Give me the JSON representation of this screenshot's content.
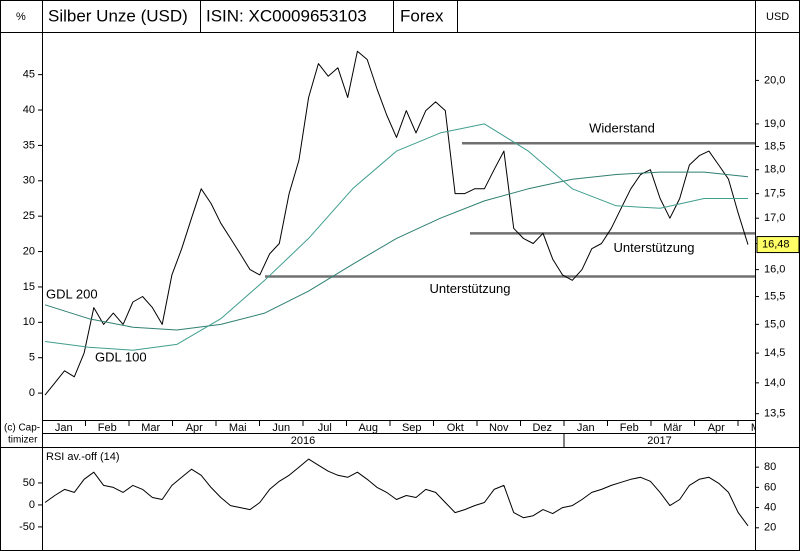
{
  "chart_data": [
    {
      "type": "line",
      "title_cells": [
        "ISIN: XC0009653103",
        "Forex"
      ],
      "ylabel": "%",
      "y2label": "USD",
      "ylim": [
        -3.8,
        50.6
      ],
      "yticks": [
        0,
        5,
        10,
        15,
        20,
        25,
        30,
        35,
        40,
        45
      ],
      "y2lim": [
        13.4,
        21.1
      ],
      "y2_log": true,
      "y2ticks": [
        {
          "value": 13.5,
          "label": "13,5"
        },
        {
          "value": 14.0,
          "label": "14,0"
        },
        {
          "value": 14.5,
          "label": "14,5"
        },
        {
          "value": 15.0,
          "label": "15,0"
        },
        {
          "value": 15.5,
          "label": "15,5"
        },
        {
          "value": 16.0,
          "label": "16,0"
        },
        {
          "value": 16.5,
          "label": "16,5"
        },
        {
          "value": 17.0,
          "label": "17,0"
        },
        {
          "value": 17.5,
          "label": "17,5"
        },
        {
          "value": 18.0,
          "label": "18,0"
        },
        {
          "value": 18.5,
          "label": "18,5"
        },
        {
          "value": 19.0,
          "label": "19,0"
        },
        {
          "value": 20.0,
          "label": "20,0"
        }
      ],
      "months": [
        "Jan",
        "Feb",
        "Mar",
        "Apr",
        "Mai",
        "Jun",
        "Jul",
        "Aug",
        "Sep",
        "Okt",
        "Nov",
        "Dez",
        "Jan",
        "Feb",
        "Mär",
        "Apr",
        "Mai"
      ],
      "years": [
        "2016",
        "2017"
      ],
      "copyright": [
        "(c) Cap-",
        "timizer"
      ],
      "series": [
        {
          "name": "Silber Unze (USD)",
          "color": "#000000",
          "axis": "y2",
          "values": [
            13.8,
            14.0,
            14.2,
            14.1,
            14.5,
            15.3,
            15.0,
            15.2,
            15.0,
            15.4,
            15.5,
            15.3,
            15.0,
            15.9,
            16.4,
            17.0,
            17.6,
            17.3,
            16.9,
            16.6,
            16.3,
            16.0,
            15.9,
            16.3,
            16.5,
            17.5,
            18.2,
            19.6,
            20.4,
            20.1,
            20.3,
            19.6,
            20.7,
            20.5,
            19.8,
            19.2,
            18.7,
            19.3,
            18.8,
            19.3,
            19.5,
            19.3,
            17.5,
            17.5,
            17.6,
            17.6,
            18.0,
            18.4,
            16.8,
            16.6,
            16.5,
            16.7,
            16.2,
            15.9,
            15.8,
            16.0,
            16.4,
            16.5,
            16.8,
            17.2,
            17.6,
            17.9,
            18.0,
            17.4,
            17.0,
            17.4,
            18.1,
            18.3,
            18.4,
            18.1,
            17.8,
            17.1,
            16.48
          ]
        },
        {
          "name": "GDL 200",
          "color": "#2f7f72",
          "axis": "y2",
          "values": [
            15.35,
            15.1,
            14.95,
            14.9,
            15.0,
            15.2,
            15.6,
            16.1,
            16.6,
            17.0,
            17.35,
            17.6,
            17.8,
            17.9,
            17.95,
            17.95,
            17.85
          ]
        },
        {
          "name": "GDL 100",
          "color": "#3f9e8e",
          "axis": "y2",
          "values": [
            14.7,
            14.6,
            14.55,
            14.65,
            15.1,
            15.8,
            16.6,
            17.6,
            18.4,
            18.8,
            19.0,
            18.4,
            17.6,
            17.25,
            17.2,
            17.4,
            17.4
          ]
        }
      ],
      "annotations": [
        {
          "label": "Widerstand",
          "value": 18.57
        },
        {
          "label": "Unterstützung",
          "value": 16.7
        },
        {
          "label": "Unterstützung",
          "value": 15.87
        }
      ],
      "last_price": {
        "value": 16.48,
        "label": "16,48"
      }
    },
    {
      "type": "line",
      "ylim": [
        -98,
        125
      ],
      "yticks": [
        -50,
        0,
        50
      ],
      "y2lim": [
        0,
        97
      ],
      "y2ticks": [
        20,
        40,
        60,
        80
      ],
      "series": [
        {
          "name": "RSI av.-off (14)",
          "color": "#000000",
          "axis": "y2",
          "values": [
            45,
            52,
            58,
            55,
            68,
            75,
            62,
            60,
            55,
            62,
            58,
            50,
            48,
            62,
            70,
            78,
            72,
            60,
            50,
            42,
            40,
            38,
            45,
            58,
            66,
            72,
            80,
            88,
            82,
            76,
            72,
            70,
            75,
            68,
            60,
            55,
            48,
            52,
            50,
            58,
            55,
            45,
            35,
            38,
            42,
            45,
            58,
            62,
            35,
            30,
            32,
            38,
            34,
            40,
            42,
            48,
            55,
            58,
            62,
            65,
            68,
            70,
            66,
            55,
            42,
            48,
            62,
            68,
            70,
            64,
            55,
            35,
            22
          ]
        }
      ]
    }
  ]
}
